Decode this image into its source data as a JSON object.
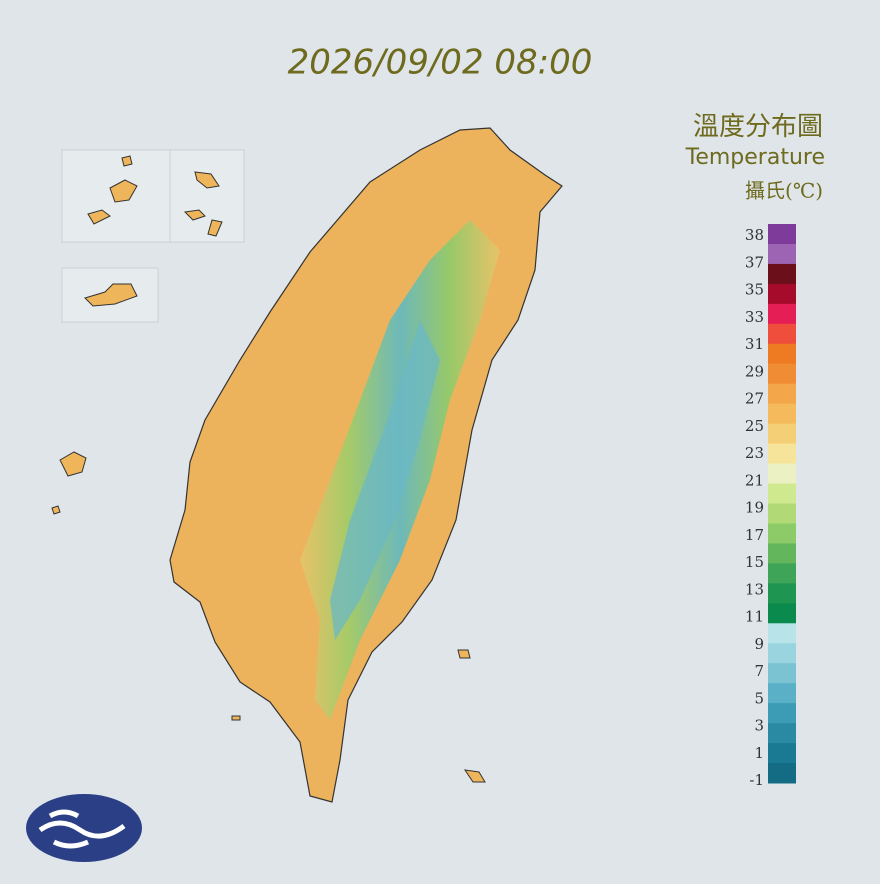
{
  "header": {
    "title": "2026/09/02 08:00",
    "map_title": "溫度分布圖",
    "map_subtitle": "Temperature",
    "unit": "攝氏(℃)"
  },
  "legend": {
    "labels": [
      "38",
      "37",
      "35",
      "33",
      "31",
      "29",
      "27",
      "25",
      "23",
      "21",
      "19",
      "17",
      "15",
      "13",
      "11",
      "9",
      "7",
      "5",
      "3",
      "1",
      "-1"
    ],
    "colors": [
      "#7e3b99",
      "#9d64b3",
      "#6b0f1a",
      "#a60b2c",
      "#e51f56",
      "#ef4e3c",
      "#ee7b22",
      "#f08d34",
      "#f3a64a",
      "#f4ba5c",
      "#f5cf76",
      "#f6e49a",
      "#ebf1c3",
      "#cfe98e",
      "#b1da77",
      "#8dcb68",
      "#63b65c",
      "#3ea457",
      "#1f9552",
      "#0b8a4d",
      "#b7e3e9",
      "#9ad4df",
      "#7bc2d3",
      "#5ab0c6",
      "#3c9cb6",
      "#2a8aa4",
      "#1b7a93",
      "#136b84"
    ]
  }
}
